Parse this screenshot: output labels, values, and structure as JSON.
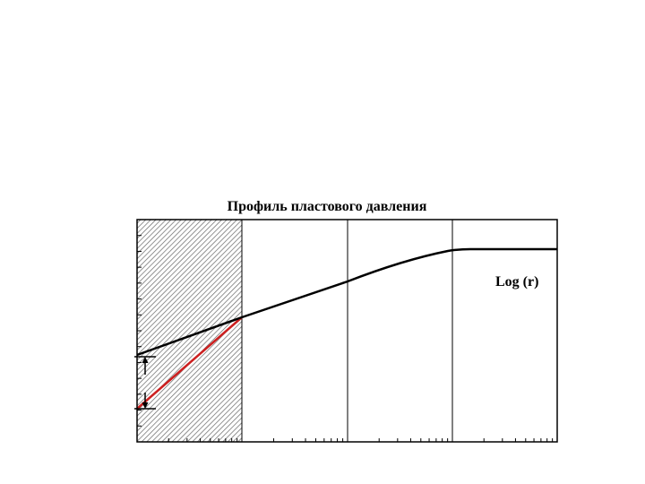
{
  "diagram": {
    "title": "Профиль пластового давления",
    "axis_note": "Log (r)",
    "colors": {
      "frame": "#000000",
      "profile_line": "#000000",
      "damaged_zone_line": "#cc1f1f",
      "hatch": "#555555",
      "background": "#ffffff"
    },
    "elements": {
      "hatched_zone": "damaged-zone-hatch",
      "arrows": [
        "up-arrow-icon",
        "down-arrow-icon"
      ]
    }
  }
}
